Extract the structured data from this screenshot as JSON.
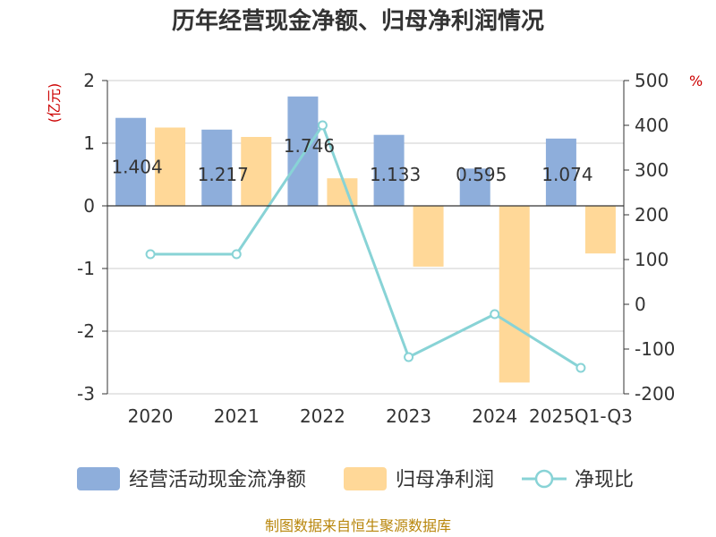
{
  "chart_data": {
    "type": "bar",
    "title": "历年经营现金净额、归母净利润情况",
    "categories": [
      "2020",
      "2021",
      "2022",
      "2023",
      "2024",
      "2025Q1-Q3"
    ],
    "left_axis": {
      "unit": "(亿元)",
      "ylim": [
        -3,
        2
      ],
      "ticks": [
        "2",
        "1",
        "0",
        "-1",
        "-2",
        "-3"
      ]
    },
    "right_axis": {
      "unit": "%",
      "ylim": [
        -200,
        500
      ],
      "ticks": [
        "500",
        "400",
        "300",
        "200",
        "100",
        "0",
        "-100",
        "-200"
      ]
    },
    "grid": true,
    "legend_position": "bottom",
    "series": [
      {
        "name": "经营活动现金流净额",
        "type": "bar",
        "axis": "left",
        "color": "#8eaedb",
        "values": [
          1.404,
          1.217,
          1.746,
          1.133,
          0.595,
          1.074
        ],
        "labels": [
          "1.404",
          "1.217",
          "1.746",
          "1.133",
          "0.595",
          "1.074"
        ]
      },
      {
        "name": "归母净利润",
        "type": "bar",
        "axis": "left",
        "color": "#ffd898",
        "values": [
          1.25,
          1.1,
          0.44,
          -0.97,
          -2.82,
          -0.76
        ]
      },
      {
        "name": "净现比",
        "type": "line",
        "axis": "right",
        "color": "#88d3d6",
        "values": [
          112,
          112,
          400,
          -118,
          -22,
          -142
        ]
      }
    ]
  },
  "source_text": "制图数据来自恒生聚源数据库"
}
